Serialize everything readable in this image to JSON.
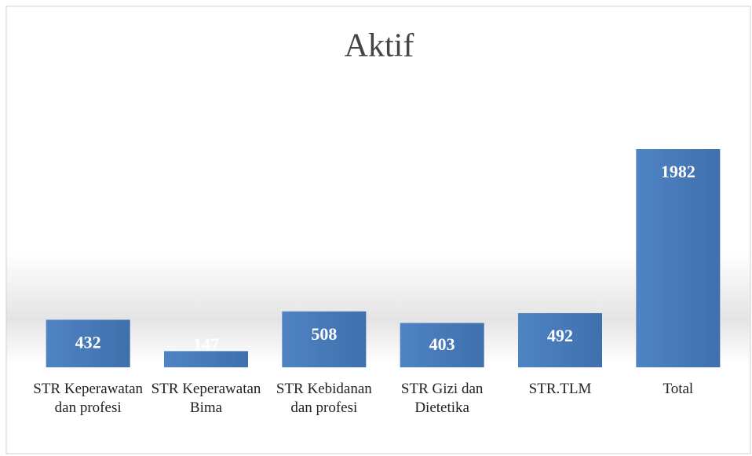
{
  "chart_data": {
    "type": "bar",
    "title": "Aktif",
    "categories": [
      "STR Keperawatan dan profesi",
      "STR Keperawatan Bima",
      "STR Kebidanan dan profesi",
      "STR Gizi dan Dietetika",
      "STR.TLM",
      "Total"
    ],
    "values": [
      432,
      147,
      508,
      403,
      492,
      1982
    ],
    "color": "#4a7ebb"
  }
}
